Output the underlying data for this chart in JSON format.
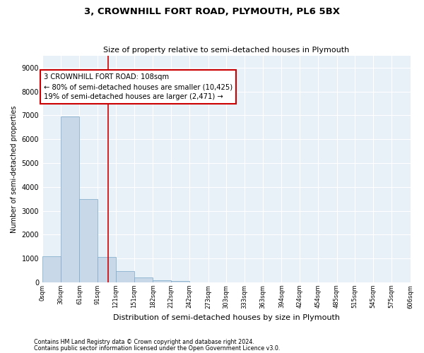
{
  "title": "3, CROWNHILL FORT ROAD, PLYMOUTH, PL6 5BX",
  "subtitle": "Size of property relative to semi-detached houses in Plymouth",
  "xlabel": "Distribution of semi-detached houses by size in Plymouth",
  "ylabel": "Number of semi-detached properties",
  "bar_color": "#c8d8e8",
  "bar_edge_color": "#7aa8c8",
  "background_color": "#e8f0f8",
  "grid_color": "#ffffff",
  "property_line_x": 108,
  "property_line_color": "#cc0000",
  "annotation_text": "3 CROWNHILL FORT ROAD: 108sqm\n← 80% of semi-detached houses are smaller (10,425)\n19% of semi-detached houses are larger (2,471) →",
  "annotation_box_color": "#cc0000",
  "footnote1": "Contains HM Land Registry data © Crown copyright and database right 2024.",
  "footnote2": "Contains public sector information licensed under the Open Government Licence v3.0.",
  "bin_edges": [
    0,
    30,
    61,
    91,
    121,
    151,
    182,
    212,
    242,
    273,
    303,
    333,
    363,
    394,
    424,
    454,
    485,
    515,
    545,
    575,
    606
  ],
  "bin_labels": [
    "0sqm",
    "30sqm",
    "61sqm",
    "91sqm",
    "121sqm",
    "151sqm",
    "182sqm",
    "212sqm",
    "242sqm",
    "273sqm",
    "303sqm",
    "333sqm",
    "363sqm",
    "394sqm",
    "424sqm",
    "454sqm",
    "485sqm",
    "515sqm",
    "545sqm",
    "575sqm",
    "606sqm"
  ],
  "bar_heights": [
    1100,
    6950,
    3500,
    1050,
    480,
    200,
    100,
    60,
    0,
    0,
    0,
    0,
    0,
    0,
    0,
    0,
    0,
    0,
    0,
    0
  ],
  "ylim": [
    0,
    9500
  ],
  "yticks": [
    0,
    1000,
    2000,
    3000,
    4000,
    5000,
    6000,
    7000,
    8000,
    9000
  ]
}
